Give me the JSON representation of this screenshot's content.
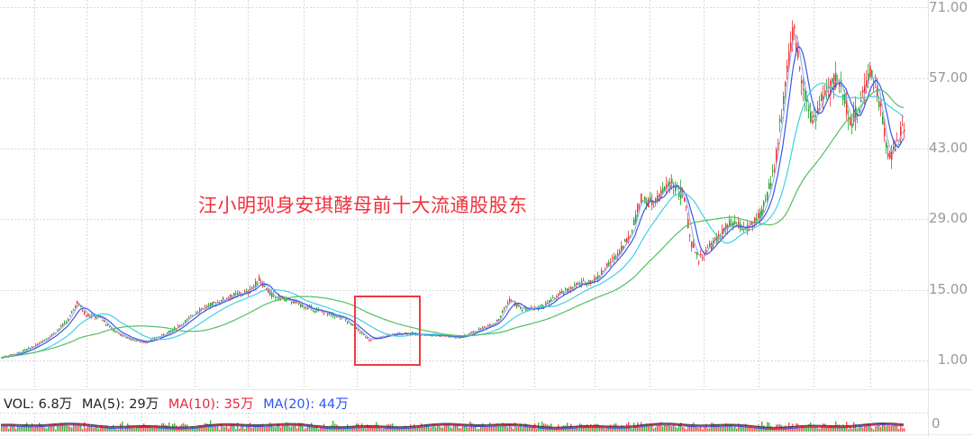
{
  "chart_data": {
    "type": "candlestick",
    "title": "",
    "annotation": "汪小明现身安琪酵母前十大流通股股东",
    "y_axis": {
      "position": "right",
      "ticks": [
        "71.00",
        "57.00",
        "43.00",
        "29.00",
        "15.00",
        "1.00"
      ],
      "ylim": [
        1,
        71
      ],
      "grid": true
    },
    "x_axis": {
      "tick_labels": [],
      "grid": true
    },
    "series": [
      {
        "name": "Price (approx. closing trend)",
        "points": [
          [
            0,
            1.5
          ],
          [
            20,
            2.5
          ],
          [
            40,
            4
          ],
          [
            60,
            6.5
          ],
          [
            75,
            9
          ],
          [
            85,
            12.5
          ],
          [
            95,
            10
          ],
          [
            110,
            9.5
          ],
          [
            125,
            7
          ],
          [
            140,
            5.5
          ],
          [
            160,
            4.5
          ],
          [
            180,
            6
          ],
          [
            200,
            8
          ],
          [
            220,
            11
          ],
          [
            240,
            12.5
          ],
          [
            260,
            14
          ],
          [
            275,
            14.5
          ],
          [
            287,
            17
          ],
          [
            300,
            14
          ],
          [
            320,
            13
          ],
          [
            340,
            11.5
          ],
          [
            360,
            10.5
          ],
          [
            380,
            9.5
          ],
          [
            400,
            6.5
          ],
          [
            410,
            5
          ],
          [
            430,
            6
          ],
          [
            450,
            6.5
          ],
          [
            470,
            6
          ],
          [
            490,
            6
          ],
          [
            510,
            5.5
          ],
          [
            530,
            7
          ],
          [
            550,
            8.5
          ],
          [
            565,
            13
          ],
          [
            580,
            11
          ],
          [
            600,
            11.5
          ],
          [
            620,
            14
          ],
          [
            640,
            16
          ],
          [
            660,
            17
          ],
          [
            680,
            21
          ],
          [
            700,
            26
          ],
          [
            710,
            33
          ],
          [
            725,
            32
          ],
          [
            745,
            36.5
          ],
          [
            760,
            33
          ],
          [
            765,
            25
          ],
          [
            775,
            21
          ],
          [
            790,
            24
          ],
          [
            810,
            28
          ],
          [
            830,
            27
          ],
          [
            845,
            30
          ],
          [
            860,
            40
          ],
          [
            870,
            55
          ],
          [
            880,
            66
          ],
          [
            890,
            57
          ],
          [
            900,
            48
          ],
          [
            915,
            54
          ],
          [
            930,
            57
          ],
          [
            945,
            48
          ],
          [
            955,
            52
          ],
          [
            965,
            59
          ],
          [
            975,
            53
          ],
          [
            985,
            41
          ],
          [
            995,
            44
          ],
          [
            1003,
            48
          ]
        ]
      },
      {
        "name": "MA (blue)",
        "color": "#3a55e6"
      },
      {
        "name": "MA (light blue)",
        "color": "#9bb4e8"
      },
      {
        "name": "MA (cyan)",
        "color": "#40d0e6"
      },
      {
        "name": "MA (green)",
        "color": "#50c060"
      }
    ],
    "highlight_box": {
      "x": 393,
      "y": 328,
      "width": 73,
      "height": 77,
      "color": "#ee3a40"
    },
    "volume_pane": {
      "legend": [
        {
          "label": "VOL: 6.8万",
          "color": "#222222"
        },
        {
          "label": "MA(5): 29万",
          "color": "#222222"
        },
        {
          "label": "MA(10): 35万",
          "color": "#e8283c"
        },
        {
          "label": "MA(20): 44万",
          "color": "#2c55f0"
        }
      ],
      "y_tick": "0"
    },
    "colors": {
      "up": "#f02828",
      "down": "#1a9a1a",
      "grid": "#d8d8d8",
      "axis_text": "#999999"
    }
  },
  "annotation": {
    "text": "汪小明现身安琪酵母前十大流通股股东",
    "color": "#f0323c"
  },
  "y_axis": {
    "labels": [
      "71.00",
      "57.00",
      "43.00",
      "29.00",
      "15.00",
      "1.00"
    ]
  },
  "volume": {
    "vol": "VOL: 6.8万",
    "ma5": "MA(5): 29万",
    "ma10": "MA(10): 35万",
    "ma20": "MA(20): 44万",
    "axis_zero": "0"
  }
}
